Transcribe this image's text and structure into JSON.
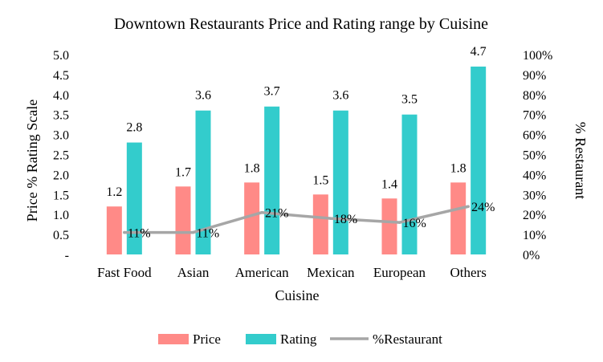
{
  "chart_data": {
    "type": "bar",
    "title": "Downtown Restaurants Price and Rating range by Cuisine",
    "xlabel": "Cuisine",
    "ylabel": "Price % Rating Scale",
    "y2label": "% Restaurant",
    "categories": [
      "Fast Food",
      "Asian",
      "American",
      "Mexican",
      "European",
      "Others"
    ],
    "ylim": [
      0,
      5
    ],
    "y2lim": [
      0,
      1
    ],
    "yticks": [
      "-",
      "0.5",
      "1.0",
      "1.5",
      "2.0",
      "2.5",
      "3.0",
      "3.5",
      "4.0",
      "4.5",
      "5.0"
    ],
    "y2ticks": [
      "0%",
      "10%",
      "20%",
      "30%",
      "40%",
      "50%",
      "60%",
      "70%",
      "80%",
      "90%",
      "100%"
    ],
    "series": [
      {
        "name": "Price",
        "type": "bar",
        "axis": "left",
        "color": "#ff8a87",
        "values": [
          1.2,
          1.7,
          1.8,
          1.5,
          1.4,
          1.8
        ],
        "labels": [
          "1.2",
          "1.7",
          "1.8",
          "1.5",
          "1.4",
          "1.8"
        ]
      },
      {
        "name": "Rating",
        "type": "bar",
        "axis": "left",
        "color": "#33cccc",
        "values": [
          2.8,
          3.6,
          3.7,
          3.6,
          3.5,
          4.7
        ],
        "labels": [
          "2.8",
          "3.6",
          "3.7",
          "3.6",
          "3.5",
          "4.7"
        ]
      },
      {
        "name": "%Restaurant",
        "type": "line",
        "axis": "right",
        "color": "#a6a6a6",
        "values": [
          0.11,
          0.11,
          0.21,
          0.18,
          0.16,
          0.24
        ],
        "labels": [
          "11%",
          "11%",
          "21%",
          "18%",
          "16%",
          "24%"
        ]
      }
    ],
    "grid": false,
    "legend": "bottom"
  }
}
